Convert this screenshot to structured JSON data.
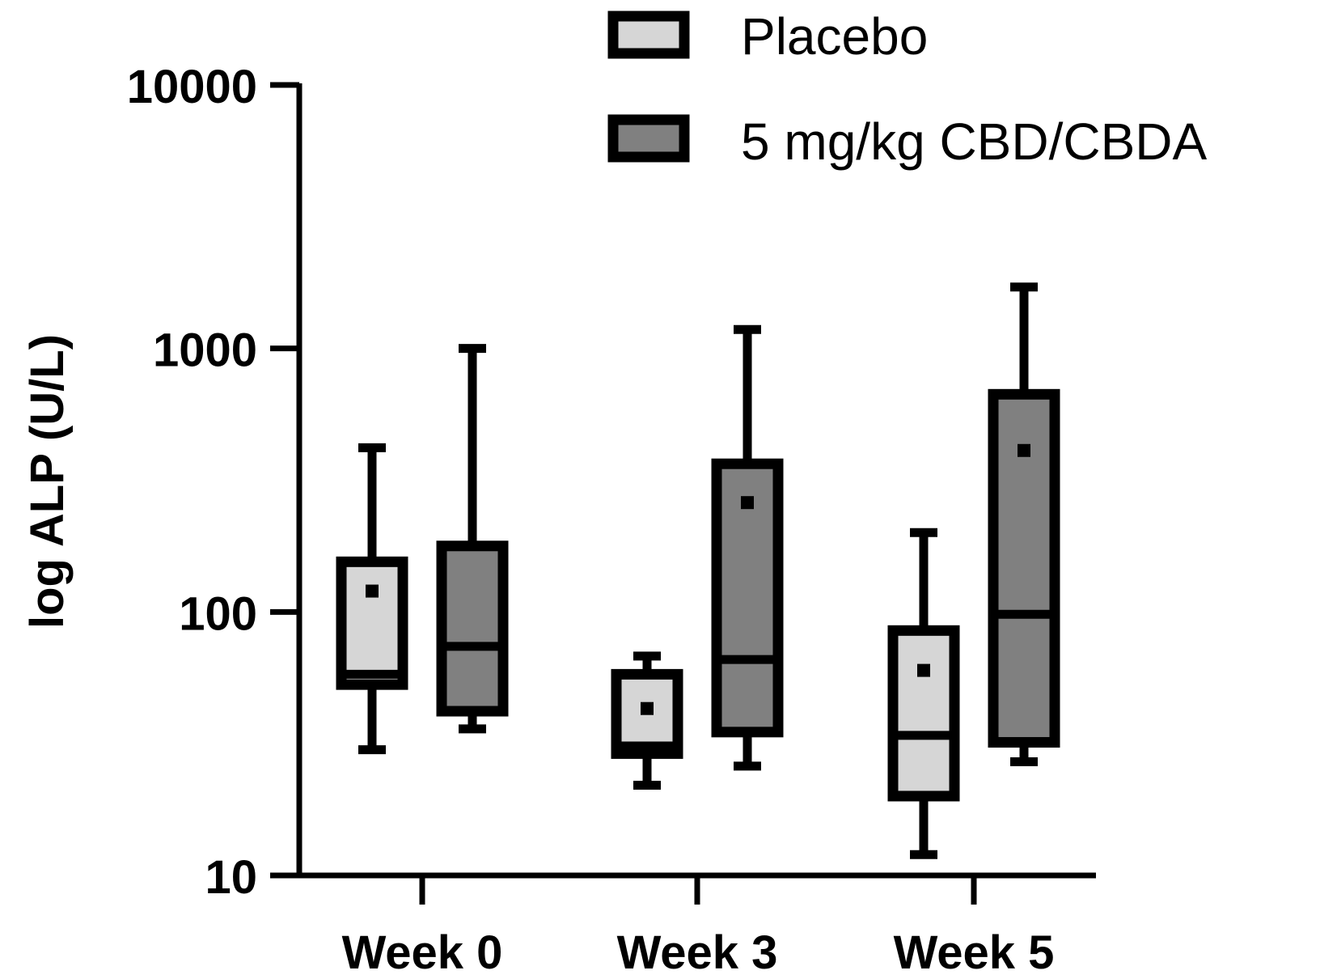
{
  "chart_data": {
    "type": "box",
    "title": "",
    "xlabel": "",
    "ylabel": "log ALP (U/L)",
    "yscale": "log",
    "ylim": [
      10,
      10000
    ],
    "yticks": [
      10,
      100,
      1000,
      10000
    ],
    "ytick_labels": [
      "10",
      "100",
      "1000",
      "10000"
    ],
    "categories": [
      "Week 0",
      "Week 3",
      "Week 5"
    ],
    "legend_position": "top-right",
    "series": [
      {
        "name": "Placebo",
        "color": "#d6d6d6",
        "boxes": [
          {
            "min": 30,
            "q1": 53,
            "median": 58,
            "q3": 155,
            "max": 420,
            "mean": 120
          },
          {
            "min": 22,
            "q1": 29,
            "median": 31,
            "q3": 58,
            "max": 68,
            "mean": 43
          },
          {
            "min": 12,
            "q1": 20,
            "median": 34,
            "q3": 85,
            "max": 200,
            "mean": 60
          }
        ]
      },
      {
        "name": "5 mg/kg CBD/CBDA",
        "color": "#808080",
        "boxes": [
          {
            "min": 36,
            "q1": 42,
            "median": 74,
            "q3": 178,
            "max": 1000,
            "mean": null
          },
          {
            "min": 26,
            "q1": 35,
            "median": 66,
            "q3": 365,
            "max": 1180,
            "mean": 260
          },
          {
            "min": 27,
            "q1": 32,
            "median": 98,
            "q3": 670,
            "max": 1710,
            "mean": 410
          }
        ]
      }
    ]
  }
}
